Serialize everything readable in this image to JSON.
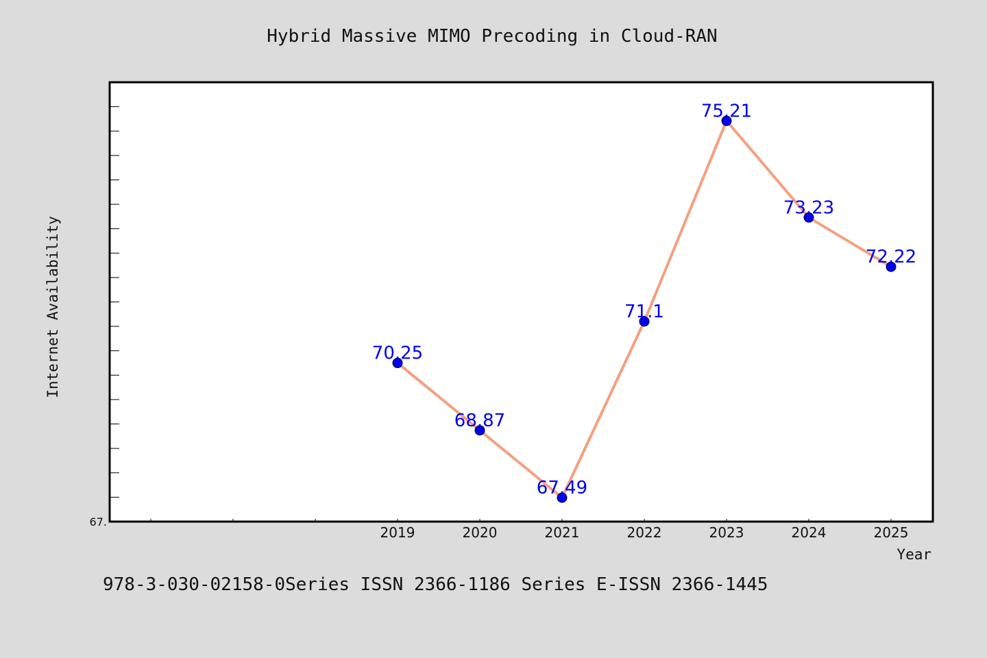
{
  "chart_data": {
    "type": "line",
    "title": "Hybrid Massive MIMO Precoding in Cloud-RAN",
    "xlabel": "Year",
    "ylabel": "Internet Availability",
    "categories": [
      "2019",
      "2020",
      "2021",
      "2022",
      "2023",
      "2024",
      "2025"
    ],
    "series": [
      {
        "values": [
          70.25,
          68.87,
          67.49,
          71.1,
          75.21,
          73.23,
          72.22
        ],
        "labels": [
          "70.25",
          "68.87",
          "67.49",
          "71.1",
          "75.21",
          "73.23",
          "72.22"
        ]
      }
    ],
    "y_tick_labels": [
      "67."
    ],
    "ylim": [
      67.0,
      76.0
    ],
    "grid": false,
    "legend": "none",
    "colors": {
      "line": "#f4a07e",
      "marker": "#0000ee",
      "label": "#0000ee",
      "background": "#dcdcdc",
      "plot": "#ffffff"
    }
  },
  "footer": {
    "text": "978-3-030-02158-0Series ISSN 2366-1186 Series E-ISSN 2366-1445"
  }
}
